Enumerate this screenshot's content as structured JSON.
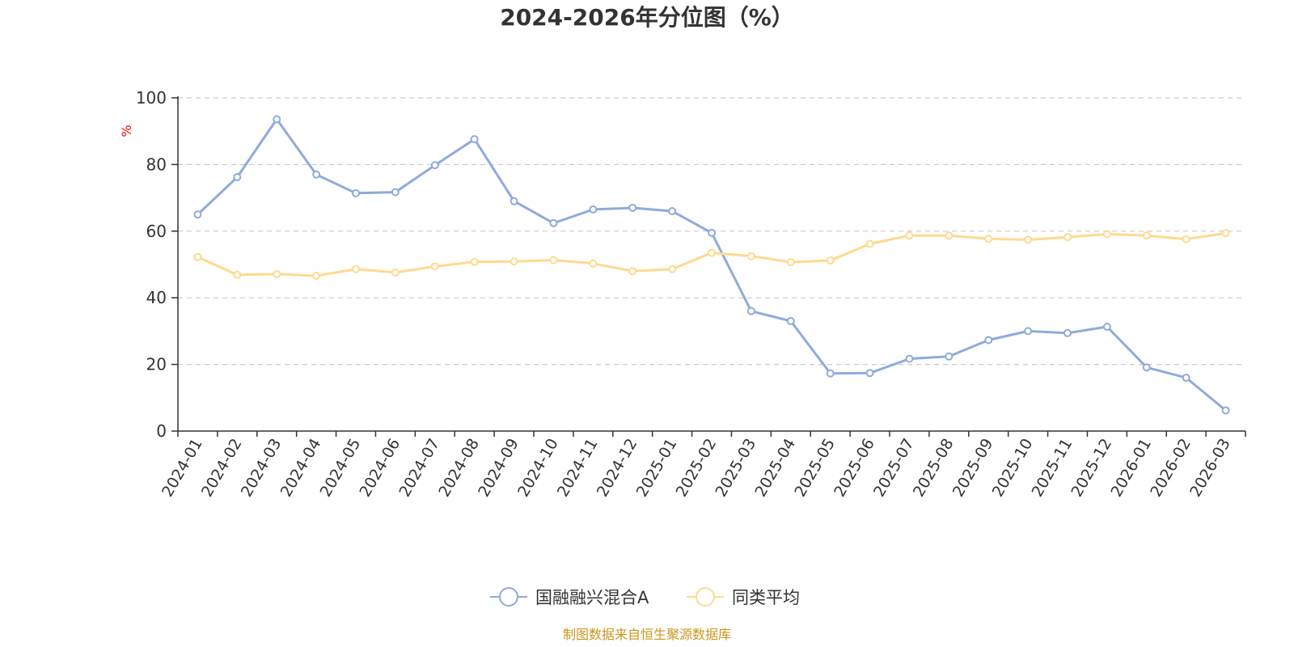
{
  "chart_data": {
    "type": "line",
    "title": "2024-2026年分位图（%）",
    "ylabel": "%",
    "ylim": [
      0,
      100
    ],
    "yticks": [
      0,
      20,
      40,
      60,
      80,
      100
    ],
    "grid": true,
    "legend_position": "bottom",
    "categories": [
      "2024-01",
      "2024-02",
      "2024-03",
      "2024-04",
      "2024-05",
      "2024-06",
      "2024-07",
      "2024-08",
      "2024-09",
      "2024-10",
      "2024-11",
      "2024-12",
      "2025-01",
      "2025-02",
      "2025-03",
      "2025-04",
      "2025-05",
      "2025-06",
      "2025-07",
      "2025-08",
      "2025-09",
      "2025-10",
      "2025-11",
      "2025-12",
      "2026-01",
      "2026-02",
      "2026-03"
    ],
    "series": [
      {
        "name": "国融融兴混合A",
        "color": "#8faadc",
        "values": [
          65,
          76.2,
          93.6,
          77,
          71.4,
          71.7,
          79.8,
          87.6,
          69,
          62.4,
          66.5,
          67,
          66,
          59.5,
          36,
          33,
          17.3,
          17.4,
          21.7,
          22.4,
          27.3,
          30,
          29.4,
          31.3,
          19.1,
          16,
          6.2
        ]
      },
      {
        "name": "同类平均",
        "color": "#ffd98f",
        "values": [
          52.2,
          46.9,
          47.1,
          46.6,
          48.6,
          47.6,
          49.4,
          50.8,
          50.9,
          51.3,
          50.3,
          48,
          48.6,
          53.5,
          52.5,
          50.7,
          51.2,
          56.2,
          58.7,
          58.7,
          57.7,
          57.4,
          58.2,
          59.1,
          58.7,
          57.6,
          59.4
        ]
      }
    ]
  },
  "unit_color": "#ff0000",
  "source": {
    "text": "制图数据来自恒生聚源数据库",
    "color": "#c8961e"
  }
}
